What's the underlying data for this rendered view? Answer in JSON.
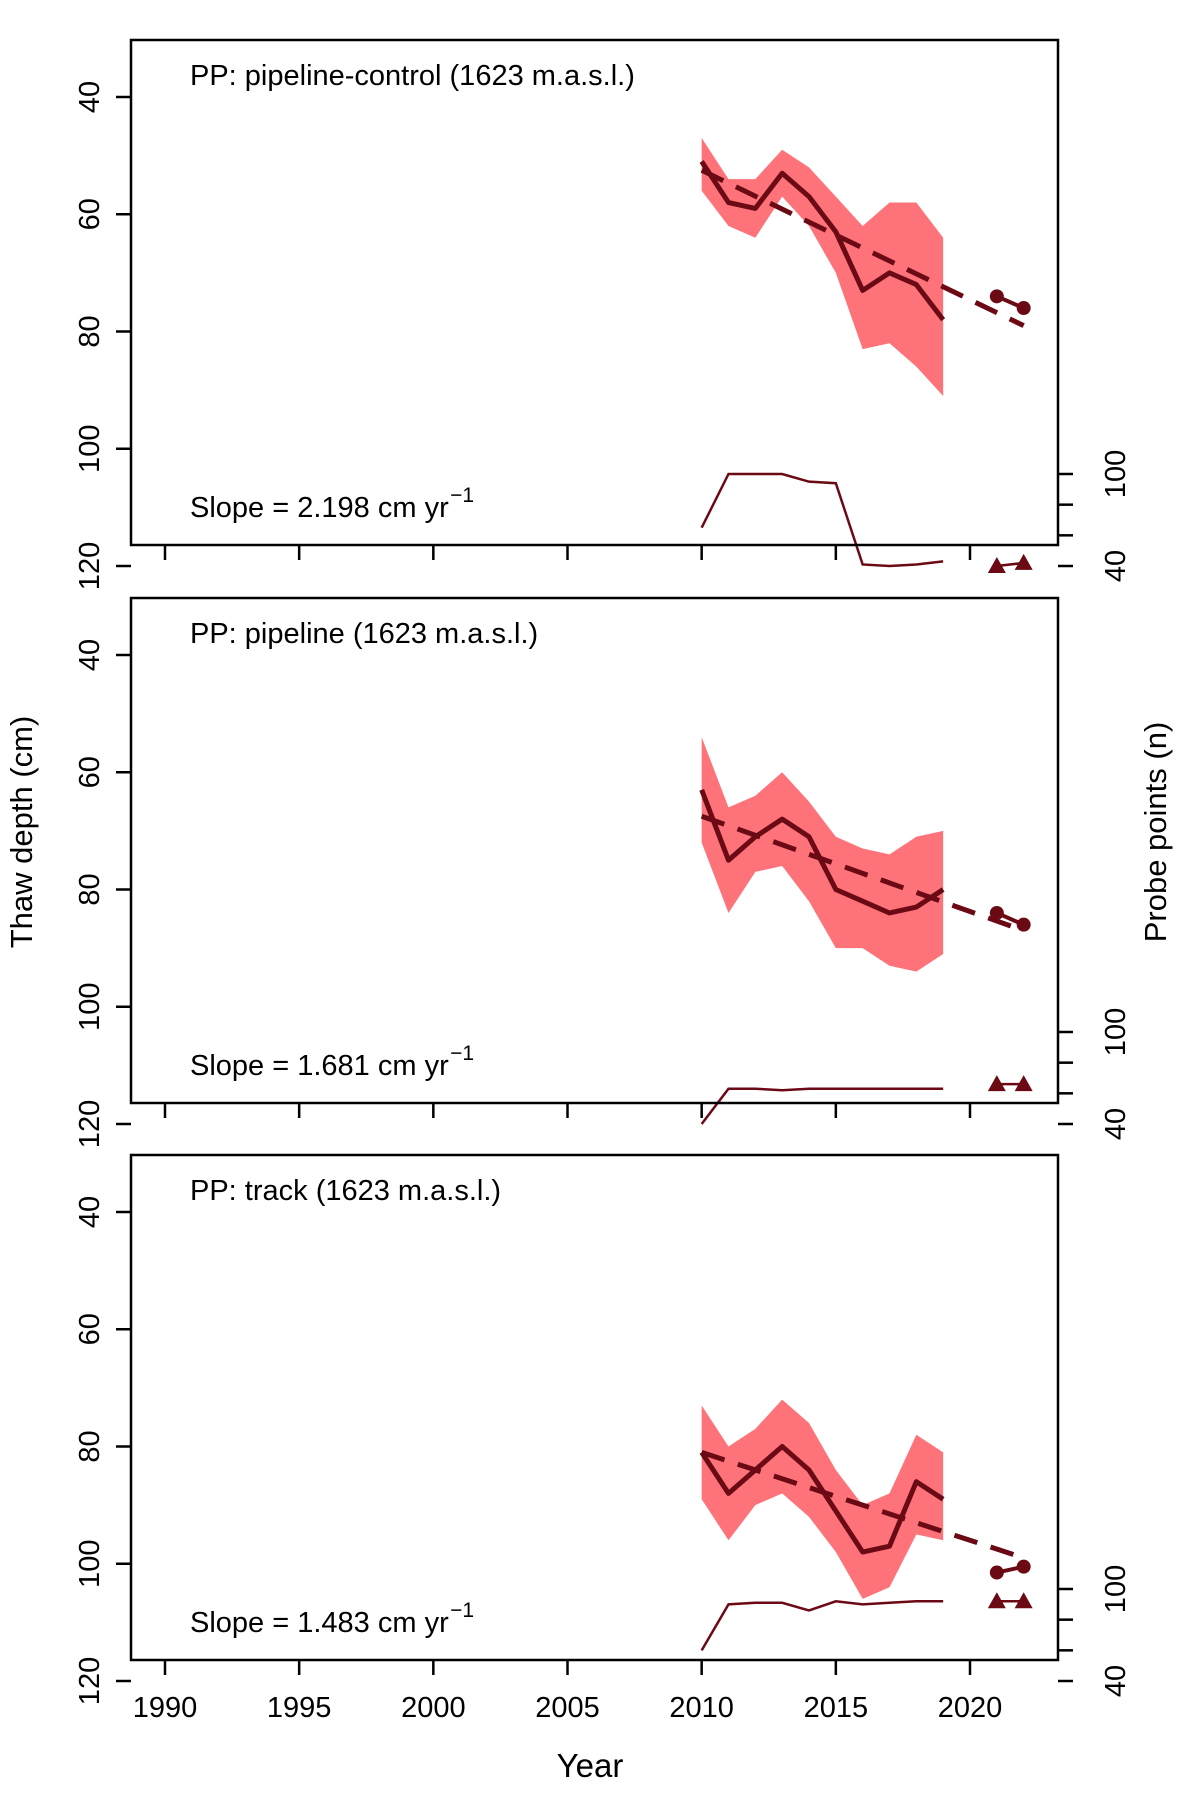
{
  "figure": {
    "xlabel": "Year",
    "ylabel_left": "Thaw depth (cm)",
    "ylabel_right": "Probe points (n)",
    "x_tick_labels": [
      "1990",
      "1995",
      "2000",
      "2005",
      "2010",
      "2015",
      "2020"
    ],
    "y_tick_labels": [
      "40",
      "60",
      "80",
      "100",
      "120"
    ],
    "n_tick_labels": [
      "40",
      "100"
    ],
    "colors": {
      "band": "#fe737a",
      "line": "#6b0a14",
      "axis": "#000000"
    }
  },
  "chart_data": [
    {
      "type": "line",
      "title": "PP: pipeline-control (1623 m.a.s.l.)",
      "slope_label": "Slope =  2.198 cm yr",
      "slope_exponent": "−1",
      "xlim": [
        1987,
        2024
      ],
      "ylim": [
        120,
        40
      ],
      "y_reversed": true,
      "years": [
        2010,
        2011,
        2012,
        2013,
        2014,
        2015,
        2016,
        2017,
        2018,
        2019
      ],
      "mean": [
        51,
        58,
        59,
        53,
        57,
        63,
        73,
        70,
        72,
        78
      ],
      "lower": [
        47,
        54,
        54,
        49,
        52,
        57,
        62,
        58,
        58,
        64
      ],
      "upper": [
        56,
        62,
        64,
        57,
        62,
        70,
        83,
        82,
        86,
        91
      ],
      "trend": {
        "x": [
          2010,
          2022
        ],
        "y": [
          52.5,
          79
        ]
      },
      "recent_points": {
        "x": [
          2021,
          2022
        ],
        "y": [
          74,
          76
        ]
      },
      "probe_n": [
        65,
        100,
        100,
        100,
        95,
        94,
        41,
        40,
        41,
        43
      ],
      "recent_probe_n": [
        40,
        42
      ],
      "n_lim": [
        40,
        100
      ]
    },
    {
      "type": "line",
      "title": "PP: pipeline (1623 m.a.s.l.)",
      "slope_label": "Slope =  1.681 cm yr",
      "slope_exponent": "−1",
      "xlim": [
        1987,
        2024
      ],
      "ylim": [
        120,
        40
      ],
      "y_reversed": true,
      "years": [
        2010,
        2011,
        2012,
        2013,
        2014,
        2015,
        2016,
        2017,
        2018,
        2019
      ],
      "mean": [
        63,
        75,
        71,
        68,
        71,
        80,
        82,
        84,
        83,
        80
      ],
      "lower": [
        54,
        66,
        64,
        60,
        65,
        71,
        73,
        74,
        71,
        70
      ],
      "upper": [
        72,
        84,
        77,
        76,
        82,
        90,
        90,
        93,
        94,
        91
      ],
      "trend": {
        "x": [
          2010,
          2022
        ],
        "y": [
          67.5,
          87
        ]
      },
      "recent_points": {
        "x": [
          2021,
          2022
        ],
        "y": [
          84,
          86
        ]
      },
      "probe_n": [
        40,
        63,
        63,
        62,
        63,
        63,
        63,
        63,
        63,
        63
      ],
      "recent_probe_n": [
        66,
        66
      ],
      "n_lim": [
        40,
        100
      ]
    },
    {
      "type": "line",
      "title": "PP: track (1623 m.a.s.l.)",
      "slope_label": "Slope =  1.483 cm yr",
      "slope_exponent": "−1",
      "xlim": [
        1987,
        2024
      ],
      "ylim": [
        120,
        40
      ],
      "y_reversed": true,
      "years": [
        2010,
        2011,
        2012,
        2013,
        2014,
        2015,
        2016,
        2017,
        2018,
        2019
      ],
      "mean": [
        81,
        88,
        84,
        80,
        84,
        91,
        98,
        97,
        86,
        89
      ],
      "lower": [
        73,
        80,
        77,
        72,
        76,
        84,
        90,
        88,
        78,
        81
      ],
      "upper": [
        89,
        96,
        90,
        88,
        92,
        98,
        106,
        104,
        95,
        96
      ],
      "trend": {
        "x": [
          2010,
          2022
        ],
        "y": [
          81,
          99
        ]
      },
      "recent_points": {
        "x": [
          2021,
          2022
        ],
        "y": [
          101.5,
          100.5
        ]
      },
      "probe_n": [
        60,
        90,
        91,
        91,
        86,
        92,
        90,
        91,
        92,
        92
      ],
      "recent_probe_n": [
        92,
        92
      ],
      "n_lim": [
        40,
        100
      ]
    }
  ]
}
